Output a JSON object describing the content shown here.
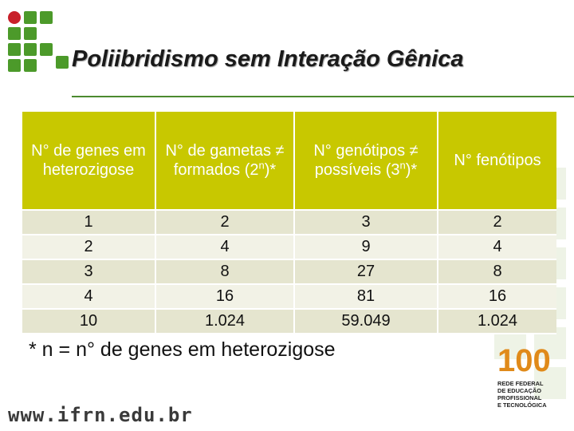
{
  "title": "Poliibridismo sem Interação Gênica",
  "table": {
    "headers": [
      {
        "text": "N° de genes em heterozigose"
      },
      {
        "text": "N° de gametas ≠ formados (2",
        "sup": "n",
        "after": ")*"
      },
      {
        "text": "N° genótipos ≠ possíveis (3",
        "sup": "n",
        "after": ")*"
      },
      {
        "text": "N° fenótipos"
      }
    ],
    "rows": [
      [
        "1",
        "2",
        "3",
        "2"
      ],
      [
        "2",
        "4",
        "9",
        "4"
      ],
      [
        "3",
        "8",
        "27",
        "8"
      ],
      [
        "4",
        "16",
        "81",
        "16"
      ],
      [
        "10",
        "1.024",
        "59.049",
        "1.024"
      ]
    ]
  },
  "footnote": "* n = n° de genes em heterozigose",
  "website": "www.ifrn.edu.br",
  "anniversary": {
    "number": "100",
    "caption_lines": [
      "REDE FEDERAL",
      "DE EDUCAÇÃO",
      "PROFISSIONAL",
      "E TECNOLÓGICA"
    ]
  },
  "colors": {
    "logo_red": "#c8202a",
    "logo_green": "#4c9a2a",
    "header_bg": "#c8c800",
    "rule": "#4c8a2f"
  }
}
